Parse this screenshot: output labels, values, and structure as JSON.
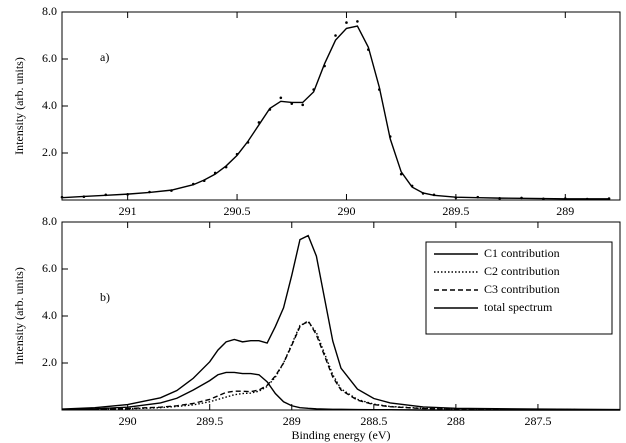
{
  "chart_data": [
    {
      "type": "line",
      "annotation": "a)",
      "ylabel": "Intensity (arb. units)",
      "xlim": [
        291.3,
        288.75
      ],
      "ylim": [
        0,
        8
      ],
      "xticks": [
        291,
        290.5,
        290,
        289.5,
        289
      ],
      "yticks": [
        {
          "value": 2,
          "label": "2.0"
        },
        {
          "value": 4,
          "label": "4.0"
        },
        {
          "value": 6,
          "label": "6.0"
        },
        {
          "value": 8,
          "label": "8.0"
        }
      ],
      "x": [
        291.3,
        291.2,
        291.1,
        291.0,
        290.9,
        290.8,
        290.7,
        290.65,
        290.6,
        290.55,
        290.5,
        290.45,
        290.4,
        290.35,
        290.3,
        290.25,
        290.2,
        290.15,
        290.1,
        290.05,
        290.0,
        289.95,
        289.9,
        289.85,
        289.8,
        289.75,
        289.7,
        289.65,
        289.6,
        289.5,
        289.4,
        289.3,
        289.2,
        289.1,
        289.0,
        288.9,
        288.8
      ],
      "series": [
        {
          "color": "#000000",
          "style": "points",
          "values": [
            0.12,
            0.14,
            0.22,
            0.24,
            0.34,
            0.4,
            0.68,
            0.82,
            1.15,
            1.4,
            1.95,
            2.45,
            3.3,
            3.85,
            4.35,
            4.1,
            4.05,
            4.7,
            5.7,
            7.0,
            7.55,
            7.6,
            6.4,
            4.7,
            2.7,
            1.1,
            0.6,
            0.28,
            0.22,
            0.1,
            0.12,
            0.07,
            0.09,
            0.05,
            0.06,
            0.04,
            0.06
          ]
        },
        {
          "color": "#000000",
          "style": "line",
          "line_style": "solid",
          "values": [
            0.1,
            0.15,
            0.2,
            0.25,
            0.32,
            0.42,
            0.65,
            0.85,
            1.1,
            1.45,
            1.9,
            2.5,
            3.2,
            3.9,
            4.2,
            4.15,
            4.15,
            4.6,
            5.8,
            6.8,
            7.3,
            7.4,
            6.5,
            4.8,
            2.6,
            1.2,
            0.55,
            0.3,
            0.2,
            0.12,
            0.1,
            0.08,
            0.07,
            0.06,
            0.05,
            0.05,
            0.05
          ]
        }
      ]
    },
    {
      "type": "line",
      "annotation": "b)",
      "ylabel": "Intensity (arb. units)",
      "xlabel": "Binding energy (eV)",
      "xlim": [
        290.4,
        287.0
      ],
      "ylim": [
        0,
        8
      ],
      "xticks": [
        290,
        289.5,
        289,
        288.5,
        288,
        287.5
      ],
      "yticks": [
        {
          "value": 2,
          "label": "2.0"
        },
        {
          "value": 4,
          "label": "4.0"
        },
        {
          "value": 6,
          "label": "6.0"
        },
        {
          "value": 8,
          "label": "8.0"
        }
      ],
      "legend": "upper right",
      "x": [
        290.4,
        290.2,
        290.0,
        289.8,
        289.7,
        289.6,
        289.5,
        289.45,
        289.4,
        289.35,
        289.3,
        289.25,
        289.2,
        289.15,
        289.1,
        289.05,
        289.0,
        288.95,
        288.9,
        288.85,
        288.8,
        288.75,
        288.7,
        288.6,
        288.5,
        288.4,
        288.2,
        288.0,
        287.5,
        287.0
      ],
      "series": [
        {
          "name": "C1 contribution",
          "color": "#000000",
          "style": "line",
          "line_style": "solid",
          "values": [
            0.02,
            0.05,
            0.12,
            0.3,
            0.5,
            0.85,
            1.25,
            1.5,
            1.6,
            1.6,
            1.55,
            1.55,
            1.5,
            1.2,
            0.7,
            0.35,
            0.18,
            0.1,
            0.07,
            0.05,
            0.04,
            0.03,
            0.03,
            0.02,
            0.01,
            0.01,
            0,
            0,
            0,
            0
          ]
        },
        {
          "name": "C2 contribution",
          "color": "#000000",
          "style": "line",
          "line_style": "dotted",
          "values": [
            0.01,
            0.02,
            0.05,
            0.1,
            0.15,
            0.22,
            0.35,
            0.45,
            0.55,
            0.65,
            0.7,
            0.72,
            0.8,
            1.0,
            1.4,
            2.0,
            2.8,
            3.6,
            3.75,
            3.3,
            2.4,
            1.5,
            0.9,
            0.45,
            0.25,
            0.15,
            0.07,
            0.04,
            0.02,
            0.01
          ]
        },
        {
          "name": "C3 contribution",
          "color": "#000000",
          "style": "line",
          "line_style": "dashed",
          "values": [
            0.01,
            0.03,
            0.06,
            0.12,
            0.18,
            0.28,
            0.45,
            0.6,
            0.75,
            0.8,
            0.8,
            0.78,
            0.85,
            1.05,
            1.45,
            2.0,
            2.75,
            3.55,
            3.8,
            3.2,
            2.3,
            1.4,
            0.85,
            0.42,
            0.23,
            0.14,
            0.06,
            0.03,
            0.02,
            0.01
          ]
        },
        {
          "name": "total spectrum",
          "color": "#000000",
          "style": "line",
          "line_style": "solid",
          "values": [
            0.04,
            0.1,
            0.23,
            0.52,
            0.83,
            1.35,
            2.05,
            2.55,
            2.9,
            3.0,
            2.9,
            2.95,
            2.95,
            2.85,
            3.55,
            4.35,
            5.73,
            7.25,
            7.42,
            6.55,
            4.74,
            2.93,
            1.78,
            0.89,
            0.49,
            0.3,
            0.13,
            0.07,
            0.04,
            0.02
          ]
        }
      ]
    }
  ]
}
